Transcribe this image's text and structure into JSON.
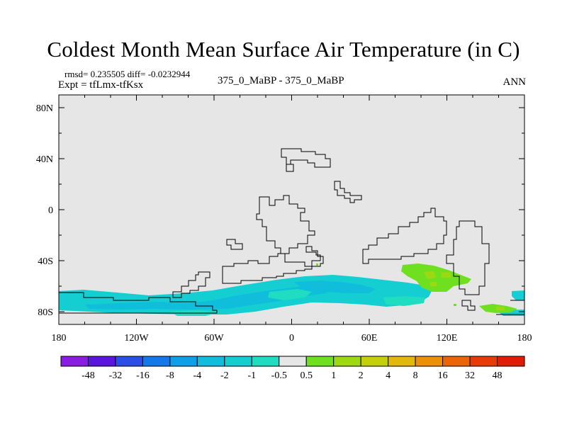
{
  "title": "Coldest Month Mean Surface Air Temperature (in C)",
  "stats_text": "rmsd= 0.235505 diff= -0.0232944",
  "expt_text": "Expt = tfLmx-tfKsx",
  "runs_text": "375_0_MaBP - 375_0_MaBP",
  "season_text": "ANN",
  "chart_data": {
    "type": "heatmap",
    "title": "Coldest Month Mean Surface Air Temperature (in C)",
    "x_axis": {
      "range": [
        -180,
        180
      ],
      "ticks": [
        -180,
        -120,
        -60,
        0,
        60,
        120,
        180
      ],
      "tick_labels": [
        "180",
        "120W",
        "60W",
        "0",
        "60E",
        "120E",
        "180"
      ]
    },
    "y_axis": {
      "range": [
        -90,
        90
      ],
      "ticks": [
        80,
        40,
        0,
        -40,
        -80
      ],
      "tick_labels": [
        "80N",
        "40N",
        "0",
        "40S",
        "80S"
      ]
    },
    "colorbar": {
      "labels": [
        "-48",
        "-32",
        "-16",
        "-8",
        "-4",
        "-2",
        "-1",
        "-0.5",
        "0.5",
        "1",
        "2",
        "4",
        "8",
        "16",
        "32",
        "48"
      ],
      "colors": [
        "#8a1ee0",
        "#5a16de",
        "#2a4ee6",
        "#1478e8",
        "#0ea0e6",
        "#10bedc",
        "#14ced2",
        "#20dcc0",
        "#e6e6e6",
        "#6ee020",
        "#9ed810",
        "#c4d00c",
        "#e2b80c",
        "#ec9008",
        "#ec6408",
        "#e63a08",
        "#e01c08"
      ]
    },
    "background_value_class": "-0.5 to 0.5",
    "anomalies": [
      {
        "region": "southern ocean band 180W-10E, 70S-85S",
        "value_class": "-2 to -1"
      },
      {
        "region": "south atlantic / indian 10W-90E, 55S-75S",
        "value_class": "-1 to -0.5"
      },
      {
        "region": "southern indian ocean 85E-140E, 45S-65S",
        "value_class": "1 to 2"
      },
      {
        "region": "small patches near 115E-125E, 52S-58S",
        "value_class": "2 to 4"
      },
      {
        "region": "south of australia 140E-175E, 75S-82S",
        "value_class": "1 to 2"
      },
      {
        "region": "pacific sector 120E-180, 65S-80S",
        "value_class": "-1 to -0.5"
      }
    ]
  }
}
